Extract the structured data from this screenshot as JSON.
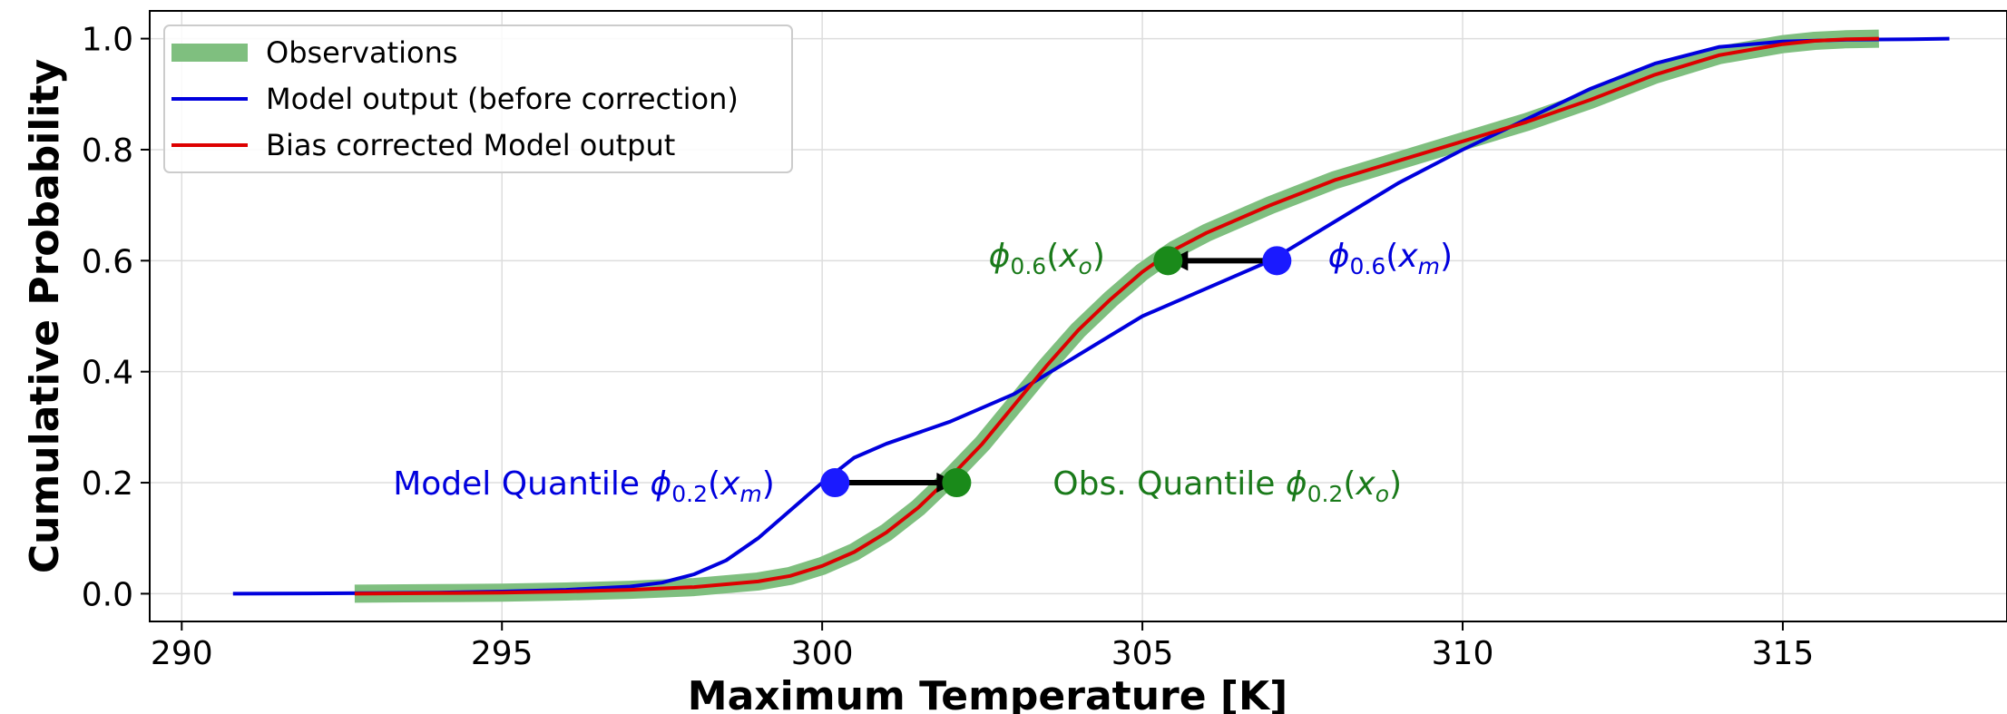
{
  "chart_data": {
    "type": "line",
    "xlabel": "Maximum Temperature [K]",
    "ylabel": "Cumulative Probability",
    "xlim": [
      289.5,
      318.5
    ],
    "ylim": [
      -0.05,
      1.05
    ],
    "xticks": [
      290,
      295,
      300,
      305,
      310,
      315
    ],
    "yticks": [
      0.0,
      0.2,
      0.4,
      0.6,
      0.8,
      1.0
    ],
    "ytick_labels": [
      "0.0",
      "0.2",
      "0.4",
      "0.6",
      "0.8",
      "1.0"
    ],
    "grid": true,
    "legend_position": "top-left",
    "series": [
      {
        "name": "Observations",
        "color": "#7fbf7f",
        "x": [
          292.7,
          294,
          295,
          296,
          297,
          298,
          299,
          299.5,
          300,
          300.5,
          301,
          301.5,
          302,
          302.5,
          303,
          303.5,
          304,
          304.5,
          305,
          305.5,
          306,
          307,
          308,
          309,
          310,
          311,
          312,
          313,
          314,
          315,
          315.5,
          316,
          316.5
        ],
        "y": [
          0.0,
          0.001,
          0.002,
          0.004,
          0.007,
          0.012,
          0.022,
          0.032,
          0.05,
          0.075,
          0.11,
          0.155,
          0.21,
          0.27,
          0.34,
          0.41,
          0.475,
          0.53,
          0.58,
          0.62,
          0.65,
          0.7,
          0.745,
          0.78,
          0.815,
          0.85,
          0.89,
          0.935,
          0.97,
          0.99,
          0.996,
          0.999,
          1.0
        ]
      },
      {
        "name": "Model output (before correction)",
        "color": "#0000dd",
        "x": [
          290.8,
          292,
          293,
          294,
          295,
          296,
          297,
          297.5,
          298,
          298.5,
          299,
          299.5,
          300,
          300.5,
          301,
          302,
          303,
          304,
          305,
          306,
          307,
          308,
          309,
          310,
          311,
          312,
          313,
          314,
          315,
          316,
          317,
          317.6
        ],
        "y": [
          0.0,
          0.0005,
          0.001,
          0.002,
          0.004,
          0.007,
          0.013,
          0.02,
          0.035,
          0.06,
          0.1,
          0.15,
          0.2,
          0.245,
          0.27,
          0.31,
          0.36,
          0.43,
          0.5,
          0.55,
          0.6,
          0.67,
          0.74,
          0.8,
          0.855,
          0.91,
          0.955,
          0.985,
          0.995,
          0.998,
          0.999,
          1.0
        ]
      },
      {
        "name": "Bias corrected Model output",
        "color": "#dd0000",
        "x": [
          292.7,
          294,
          295,
          296,
          297,
          298,
          299,
          299.5,
          300,
          300.5,
          301,
          301.5,
          302,
          302.5,
          303,
          303.5,
          304,
          304.5,
          305,
          305.5,
          306,
          307,
          308,
          309,
          310,
          311,
          312,
          313,
          314,
          315,
          315.5,
          316,
          316.5
        ],
        "y": [
          0.0,
          0.001,
          0.002,
          0.004,
          0.007,
          0.012,
          0.022,
          0.032,
          0.05,
          0.075,
          0.11,
          0.155,
          0.21,
          0.27,
          0.34,
          0.41,
          0.475,
          0.53,
          0.58,
          0.62,
          0.65,
          0.7,
          0.745,
          0.78,
          0.815,
          0.85,
          0.89,
          0.935,
          0.97,
          0.99,
          0.996,
          0.999,
          1.0
        ]
      }
    ],
    "markers": [
      {
        "x": 300.2,
        "y": 0.2,
        "color": "#1a1aff"
      },
      {
        "x": 302.1,
        "y": 0.2,
        "color": "#1a8a1a"
      },
      {
        "x": 305.4,
        "y": 0.6,
        "color": "#1a8a1a"
      },
      {
        "x": 307.1,
        "y": 0.6,
        "color": "#1a1aff"
      }
    ],
    "arrows": [
      {
        "from": [
          300.2,
          0.2
        ],
        "to": [
          302.1,
          0.2
        ]
      },
      {
        "from": [
          307.1,
          0.6
        ],
        "to": [
          305.4,
          0.6
        ]
      }
    ],
    "annotations": [
      {
        "id": "model-quantile-02",
        "text": "Model Quantile ",
        "sym": "ϕ",
        "sub": "0.2",
        "arg": "(x",
        "argsub": "m",
        "close": ")",
        "x": 293.3,
        "y": 0.2,
        "color": "#0000dd"
      },
      {
        "id": "obs-quantile-02",
        "text": "Obs. Quantile ",
        "sym": "ϕ",
        "sub": "0.2",
        "arg": "(x",
        "argsub": "o",
        "close": ")",
        "x": 303.6,
        "y": 0.2,
        "color": "#1a7a1a"
      },
      {
        "id": "obs-quantile-06",
        "text": "",
        "sym": "ϕ",
        "sub": "0.6",
        "arg": "(x",
        "argsub": "o",
        "close": ")",
        "x": 302.6,
        "y": 0.61,
        "color": "#1a7a1a"
      },
      {
        "id": "model-quantile-06",
        "text": "",
        "sym": "ϕ",
        "sub": "0.6",
        "arg": "(x",
        "argsub": "m",
        "close": ")",
        "x": 307.9,
        "y": 0.61,
        "color": "#0000dd"
      }
    ]
  }
}
